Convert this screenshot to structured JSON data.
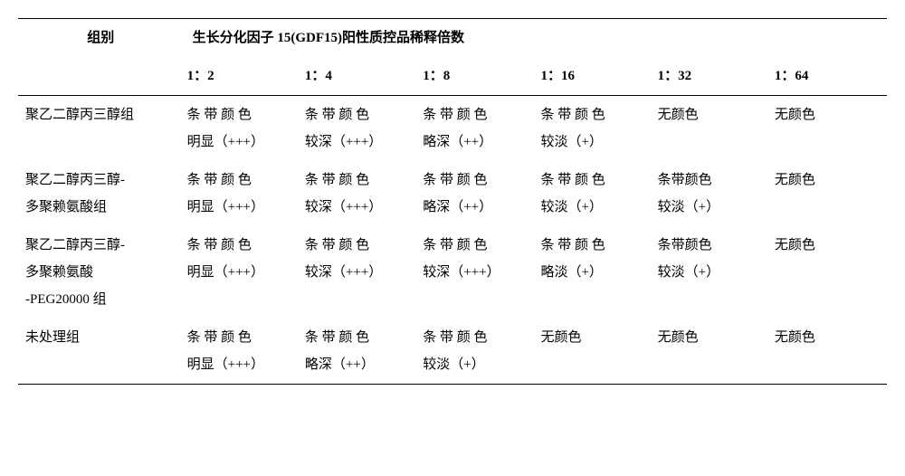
{
  "header": {
    "group_col": "组别",
    "title": "生长分化因子 15(GDF15)阳性质控品稀释倍数",
    "dilutions": [
      "1：2",
      "1：4",
      "1：8",
      "1：16",
      "1：32",
      "1：64"
    ]
  },
  "rows": [
    {
      "group_lines": [
        "聚乙二醇丙三醇组"
      ],
      "cells": [
        [
          "条 带 颜 色",
          "明显（+++）"
        ],
        [
          "条 带 颜 色",
          "较深（+++）"
        ],
        [
          "条 带 颜 色",
          "略深（++）"
        ],
        [
          "条 带 颜 色",
          "较淡（+）"
        ],
        [
          "无颜色"
        ],
        [
          "无颜色"
        ]
      ]
    },
    {
      "group_lines": [
        "聚乙二醇丙三醇-",
        "多聚赖氨酸组"
      ],
      "cells": [
        [
          "条 带 颜 色",
          "明显（+++）"
        ],
        [
          "条 带 颜 色",
          "较深（+++）"
        ],
        [
          "条 带 颜 色",
          "略深（++）"
        ],
        [
          "条 带 颜 色",
          "较淡（+）"
        ],
        [
          "条带颜色",
          "较淡（+）"
        ],
        [
          "无颜色"
        ]
      ]
    },
    {
      "group_lines": [
        "聚乙二醇丙三醇-",
        "多聚赖氨酸",
        "-PEG20000 组"
      ],
      "cells": [
        [
          "条 带 颜 色",
          "明显（+++）"
        ],
        [
          "条 带 颜 色",
          "较深（+++）"
        ],
        [
          "条 带 颜 色",
          "较深（+++）"
        ],
        [
          "条 带 颜 色",
          "略淡（+）"
        ],
        [
          "条带颜色",
          "较淡（+）"
        ],
        [
          "无颜色"
        ]
      ]
    },
    {
      "group_lines": [
        "未处理组"
      ],
      "cells": [
        [
          "条 带 颜 色",
          "明显（+++）"
        ],
        [
          "条 带 颜 色",
          "略深（++）"
        ],
        [
          "条 带 颜 色",
          "较淡（+）"
        ],
        [
          "无颜色"
        ],
        [
          "无颜色"
        ],
        [
          "无颜色"
        ]
      ]
    }
  ]
}
